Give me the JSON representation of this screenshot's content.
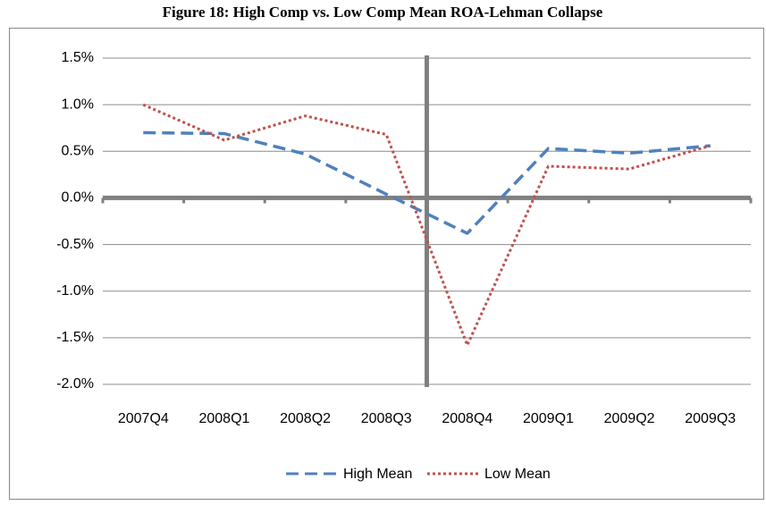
{
  "chart_data": {
    "type": "line",
    "title": "Figure 18: High Comp vs. Low Comp Mean ROA-Lehman Collapse",
    "categories": [
      "2007Q4",
      "2008Q1",
      "2008Q2",
      "2008Q3",
      "2008Q4",
      "2009Q1",
      "2009Q2",
      "2009Q3"
    ],
    "series": [
      {
        "name": "High Mean",
        "color": "#4f81bd",
        "dash": "dashed",
        "values": [
          0.7,
          0.69,
          0.47,
          0.04,
          -0.38,
          0.53,
          0.48,
          0.56
        ]
      },
      {
        "name": "Low Mean",
        "color": "#c0504d",
        "dash": "dotted",
        "values": [
          1.0,
          0.62,
          0.88,
          0.68,
          -1.58,
          0.34,
          0.31,
          0.56
        ]
      }
    ],
    "ylim": [
      -2.0,
      1.5
    ],
    "yticks": [
      {
        "value": -2.0,
        "label": "-2.0%"
      },
      {
        "value": -1.5,
        "label": "-1.5%"
      },
      {
        "value": -1.0,
        "label": "-1.0%"
      },
      {
        "value": -0.5,
        "label": "-0.5%"
      },
      {
        "value": 0.0,
        "label": "0.0%"
      },
      {
        "value": 0.5,
        "label": "0.5%"
      },
      {
        "value": 1.0,
        "label": "1.0%"
      },
      {
        "value": 1.5,
        "label": "1.5%"
      }
    ],
    "grid": true,
    "legend": "bottom"
  }
}
